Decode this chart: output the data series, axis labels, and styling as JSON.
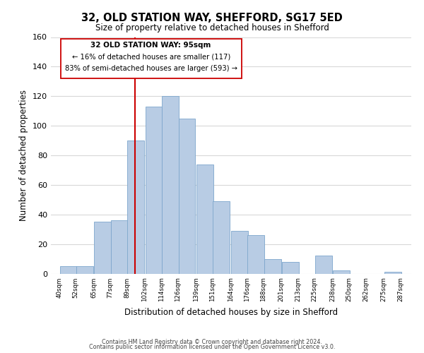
{
  "title": "32, OLD STATION WAY, SHEFFORD, SG17 5ED",
  "subtitle": "Size of property relative to detached houses in Shefford",
  "xlabel": "Distribution of detached houses by size in Shefford",
  "ylabel": "Number of detached properties",
  "bar_color": "#b8cce4",
  "bar_edge_color": "#7da6cc",
  "vline_color": "#cc0000",
  "vline_x": 95,
  "annotation_title": "32 OLD STATION WAY: 95sqm",
  "annotation_line1": "← 16% of detached houses are smaller (117)",
  "annotation_line2": "83% of semi-detached houses are larger (593) →",
  "bins_left": [
    40,
    52,
    65,
    77,
    89,
    102,
    114,
    126,
    139,
    151,
    164,
    176,
    188,
    201,
    213,
    225,
    238,
    250,
    262,
    275
  ],
  "bin_width": 13,
  "heights": [
    5,
    5,
    35,
    36,
    90,
    113,
    120,
    105,
    74,
    49,
    29,
    26,
    10,
    8,
    0,
    12,
    2,
    0,
    0,
    1
  ],
  "tick_labels": [
    "40sqm",
    "52sqm",
    "65sqm",
    "77sqm",
    "89sqm",
    "102sqm",
    "114sqm",
    "126sqm",
    "139sqm",
    "151sqm",
    "164sqm",
    "176sqm",
    "188sqm",
    "201sqm",
    "213sqm",
    "225sqm",
    "238sqm",
    "250sqm",
    "262sqm",
    "275sqm",
    "287sqm"
  ],
  "tick_positions": [
    40,
    52,
    65,
    77,
    89,
    102,
    114,
    126,
    139,
    151,
    164,
    176,
    188,
    201,
    213,
    225,
    238,
    250,
    262,
    275,
    287
  ],
  "ylim": [
    0,
    160
  ],
  "xlim": [
    34,
    295
  ],
  "yticks": [
    0,
    20,
    40,
    60,
    80,
    100,
    120,
    140,
    160
  ],
  "footer_line1": "Contains HM Land Registry data © Crown copyright and database right 2024.",
  "footer_line2": "Contains public sector information licensed under the Open Government Licence v3.0.",
  "background_color": "#ffffff",
  "grid_color": "#d8d8d8"
}
